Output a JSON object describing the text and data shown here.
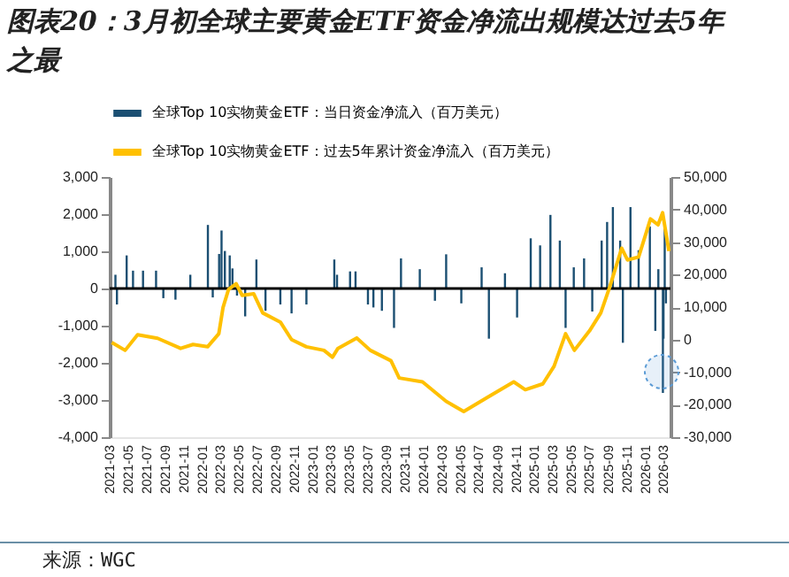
{
  "chart_data": {
    "type": "bar",
    "title": "图表20：3月初全球主要黄金ETF资金净流出规模达过去5年之最",
    "xlim": [
      "2021-03-01",
      "2026-03-25"
    ],
    "xticks": [
      "2021-03",
      "2021-05",
      "2021-07",
      "2021-09",
      "2021-11",
      "2022-01",
      "2022-03",
      "2022-05",
      "2022-07",
      "2022-09",
      "2022-11",
      "2023-01",
      "2023-03",
      "2023-05",
      "2023-07",
      "2023-09",
      "2023-11",
      "2024-01",
      "2024-03",
      "2024-05",
      "2024-07",
      "2024-09",
      "2024-11",
      "2025-01",
      "2025-03",
      "2025-05",
      "2025-07",
      "2025-09",
      "2025-11",
      "2026-01",
      "2026-03"
    ],
    "ylim": [
      -4000,
      3000
    ],
    "yticks": [
      {
        "value": -4000,
        "label": "-4,000"
      },
      {
        "value": -3000,
        "label": "-3,000"
      },
      {
        "value": -2000,
        "label": "-2,000"
      },
      {
        "value": -1000,
        "label": "-1,000"
      },
      0,
      {
        "value": 1000,
        "label": "1,000"
      },
      {
        "value": 2000,
        "label": "2,000"
      },
      {
        "value": 3000,
        "label": "3,000"
      }
    ],
    "y2lim": [
      -30000,
      50000
    ],
    "y2ticks": [
      {
        "value": -30000,
        "label": "-30,000"
      },
      {
        "value": -20000,
        "label": "-20,000"
      },
      {
        "value": -10000,
        "label": "-10,000"
      },
      0,
      {
        "value": 10000,
        "label": "10,000"
      },
      {
        "value": 20000,
        "label": "20,000"
      },
      {
        "value": 30000,
        "label": "30,000"
      },
      {
        "value": 40000,
        "label": "40,000"
      },
      {
        "value": 50000,
        "label": "50,000"
      }
    ],
    "grid": false,
    "legend": "top",
    "ref_lines": [
      {
        "axis": "y",
        "value": 0,
        "color": "#000000"
      }
    ],
    "annotations": [
      "来源：WGC"
    ],
    "series": [
      {
        "name": "全球Top 10实物黄金ETF：当日资金净流入（百万美元）",
        "type": "bar",
        "color": "#1b4f72",
        "x": [
          "2021-03-20",
          "2021-03-25",
          "2021-04-26",
          "2021-05-17",
          "2021-06-19",
          "2021-08-01",
          "2021-08-25",
          "2021-10-04",
          "2021-11-22",
          "2022-01-19",
          "2022-02-04",
          "2022-02-25",
          "2022-03-05",
          "2022-03-16",
          "2022-04-01",
          "2022-04-10",
          "2022-04-25",
          "2022-05-22",
          "2022-06-28",
          "2022-07-28",
          "2022-09-15",
          "2022-10-22",
          "2022-12-10",
          "2023-03-12",
          "2023-03-21",
          "2023-05-03",
          "2023-05-21",
          "2023-07-01",
          "2023-07-19",
          "2023-08-16",
          "2023-09-25",
          "2023-10-18",
          "2023-12-19",
          "2024-02-07",
          "2024-03-15",
          "2024-05-04",
          "2024-07-10",
          "2024-08-03",
          "2024-09-25",
          "2024-11-04",
          "2024-12-19",
          "2025-01-19",
          "2025-02-22",
          "2025-03-25",
          "2025-04-13",
          "2025-05-10",
          "2025-06-13",
          "2025-07-10",
          "2025-08-10",
          "2025-08-28",
          "2025-09-16",
          "2025-10-10",
          "2025-10-19",
          "2025-11-13",
          "2025-12-10",
          "2026-01-16",
          "2026-02-03",
          "2026-02-13",
          "2026-02-28",
          "2026-03-02",
          "2026-03-06",
          "2026-03-10"
        ],
        "values": [
          370,
          -430,
          890,
          480,
          480,
          480,
          -260,
          -300,
          370,
          1710,
          -240,
          930,
          1560,
          1010,
          890,
          540,
          -190,
          -750,
          780,
          -600,
          -430,
          -670,
          -430,
          780,
          370,
          460,
          460,
          -430,
          -510,
          -600,
          -1060,
          810,
          520,
          -330,
          920,
          -400,
          570,
          -1350,
          410,
          -780,
          1350,
          1160,
          1980,
          1290,
          -1060,
          570,
          810,
          -620,
          1290,
          1790,
          2190,
          1290,
          -1460,
          2190,
          1030,
          1670,
          -1140,
          520,
          -2810,
          -1350,
          1750,
          -400
        ]
      },
      {
        "name": "全球Top 10实物黄金ETF：过去5年累计资金净流入（百万美元）",
        "type": "line",
        "axis": "y2",
        "color": "#ffc000",
        "x": [
          "2021-03-08",
          "2021-04-21",
          "2021-06-01",
          "2021-08-06",
          "2021-10-21",
          "2021-12-01",
          "2022-01-18",
          "2022-02-24",
          "2022-03-10",
          "2022-03-28",
          "2022-04-22",
          "2022-05-12",
          "2022-06-19",
          "2022-07-19",
          "2022-09-15",
          "2022-10-22",
          "2022-12-10",
          "2023-02-06",
          "2023-03-06",
          "2023-03-24",
          "2023-05-25",
          "2023-07-09",
          "2023-09-15",
          "2023-10-12",
          "2023-12-28",
          "2024-03-15",
          "2024-05-12",
          "2024-07-28",
          "2024-10-24",
          "2024-12-01",
          "2025-01-28",
          "2025-03-06",
          "2025-04-13",
          "2025-05-12",
          "2025-07-01",
          "2025-08-07",
          "2025-09-06",
          "2025-10-15",
          "2025-11-03",
          "2025-12-10",
          "2026-01-18",
          "2026-02-12",
          "2026-02-27",
          "2026-03-20"
        ],
        "values": [
          -900,
          -3300,
          1500,
          400,
          -2700,
          -1500,
          -2200,
          1800,
          9900,
          15400,
          17200,
          13600,
          14100,
          8200,
          5400,
          0,
          -2200,
          -3300,
          -5400,
          -2700,
          500,
          -3300,
          -6500,
          -11800,
          -13000,
          -19000,
          -22100,
          -17800,
          -13000,
          -15400,
          -13600,
          -8200,
          1800,
          -3300,
          2700,
          8200,
          16300,
          28100,
          24500,
          25400,
          37100,
          35300,
          39000,
          27200
        ]
      }
    ]
  }
}
